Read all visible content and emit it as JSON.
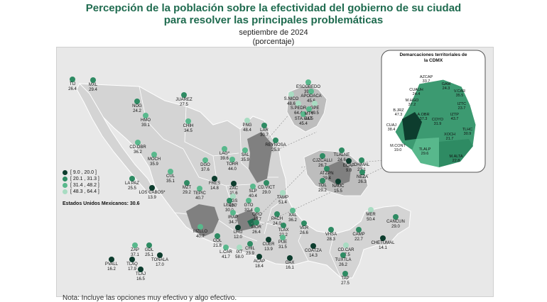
{
  "header": {
    "title_line1": "Percepción de la población sobre la efectividad del gobierno de su ciudad",
    "title_line2": "para resolver las principales problemáticas",
    "date": "septiembre de 2024",
    "unit": "(porcentaje)"
  },
  "legend": {
    "items": [
      {
        "label": "[  9.0 , 20.0 ]",
        "color": "#0d3d2e"
      },
      {
        "label": "[ 20.1 , 31.3 ]",
        "color": "#2e8b63"
      },
      {
        "label": "[ 31.4 , 48.2 ]",
        "color": "#58b88c"
      },
      {
        "label": "[ 48.3 , 64.4 ]",
        "color": "#a8dcc2"
      }
    ],
    "national": "Estados Unidos Mexicanos: 30.6"
  },
  "inset": {
    "title_line1": "Demarcaciones territoriales de",
    "title_line2": "la CDMX"
  },
  "footnote": "Nota: Incluye las opciones muy efectivo y algo efectivo.",
  "colors": {
    "dark": "#0d3d2e",
    "mid": "#2e8b63",
    "light": "#58b88c",
    "pale": "#a8dcc2",
    "region": "#808080",
    "land": "#d4d4d4"
  },
  "cities": [
    {
      "name": "TIJ",
      "value": "26.4",
      "cls": "mid"
    },
    {
      "name": "MXL",
      "value": "29.4",
      "cls": "mid"
    },
    {
      "name": "NOG",
      "value": "24.2",
      "cls": "mid"
    },
    {
      "name": "HMO",
      "value": "39.1",
      "cls": "light"
    },
    {
      "name": "JUAREZ",
      "value": "27.5",
      "cls": "mid"
    },
    {
      "name": "CHIH",
      "value": "34.5",
      "cls": "light"
    },
    {
      "name": "CD.OBR",
      "value": "36.2",
      "cls": "light"
    },
    {
      "name": "MOCH",
      "value": "35.9",
      "cls": "light"
    },
    {
      "name": "LA PAZ",
      "value": "25.5",
      "cls": "mid"
    },
    {
      "name": "LOS CABOS*",
      "value": "13.9",
      "cls": "dark"
    },
    {
      "name": "CUL",
      "value": "35.1",
      "cls": "light"
    },
    {
      "name": "MZT",
      "value": "29.2",
      "cls": "mid"
    },
    {
      "name": "DGO",
      "value": "37.6",
      "cls": "light"
    },
    {
      "name": "LAG*",
      "value": "39.6",
      "cls": "light"
    },
    {
      "name": "TORR",
      "value": "44.0",
      "cls": "light"
    },
    {
      "name": "SAL",
      "value": "35.9",
      "cls": "light"
    },
    {
      "name": "PNG",
      "value": "48.4",
      "cls": "pale"
    },
    {
      "name": "LAR",
      "value": "30.7",
      "cls": "mid"
    },
    {
      "name": "REYNOSA",
      "value": "25.3",
      "cls": "mid"
    },
    {
      "name": "ESCOBEDO",
      "value": "39.4",
      "cls": "light"
    },
    {
      "name": "S.NICO",
      "value": "48.6",
      "cls": "pale"
    },
    {
      "name": "APODACA",
      "value": "45.6",
      "cls": "light"
    },
    {
      "name": "GPE",
      "value": "49.5",
      "cls": "pale"
    },
    {
      "name": "S.PEDR",
      "value": "64.4",
      "cls": "pale"
    },
    {
      "name": "STA.CAT",
      "value": "45.4",
      "cls": "light"
    },
    {
      "name": "MTY",
      "value": "41.5",
      "cls": "light"
    },
    {
      "name": "FRES",
      "value": "14.8",
      "cls": "dark"
    },
    {
      "name": "ZAC",
      "value": "11.6",
      "cls": "dark"
    },
    {
      "name": "TEPIC",
      "value": "40.7",
      "cls": "light"
    },
    {
      "name": "SLP",
      "value": "40.4",
      "cls": "light"
    },
    {
      "name": "CD.VICT",
      "value": "29.0",
      "cls": "mid"
    },
    {
      "name": "AGS",
      "value": "49.7",
      "cls": "pale"
    },
    {
      "name": "LEON",
      "value": "30.0",
      "cls": "mid"
    },
    {
      "name": "GTO",
      "value": "32.4",
      "cls": "light"
    },
    {
      "name": "IRAP",
      "value": "34.7",
      "cls": "light"
    },
    {
      "name": "QRO",
      "value": "40.7",
      "cls": "light"
    },
    {
      "name": "TAMP",
      "value": "51.4",
      "cls": "pale"
    },
    {
      "name": "CJZCALLI",
      "value": "26.7",
      "cls": "mid"
    },
    {
      "name": "TLALNE",
      "value": "24.6",
      "cls": "mid"
    },
    {
      "name": "ATZPN",
      "value": "29.4",
      "cls": "mid"
    },
    {
      "name": "ECAP",
      "value": "9.0",
      "cls": "dark"
    },
    {
      "name": "CHIMAL",
      "value": "21.1",
      "cls": "mid"
    },
    {
      "name": "NEZA",
      "value": "26.3",
      "cls": "mid"
    },
    {
      "name": "TOL",
      "value": "29.2",
      "cls": "mid"
    },
    {
      "name": "NAUC",
      "value": "15.5",
      "cls": "dark"
    },
    {
      "name": "PACH",
      "value": "24.0",
      "cls": "mid"
    },
    {
      "name": "XAL",
      "value": "36.2",
      "cls": "light"
    },
    {
      "name": "VER",
      "value": "26.6",
      "cls": "mid"
    },
    {
      "name": "TLAX",
      "value": "22.2",
      "cls": "mid"
    },
    {
      "name": "MOR",
      "value": "26.4",
      "cls": "mid"
    },
    {
      "name": "PUE",
      "value": "31.5",
      "cls": "light"
    },
    {
      "name": "MZLLO",
      "value": "40.7",
      "cls": "light"
    },
    {
      "name": "COL",
      "value": "21.8",
      "cls": "mid"
    },
    {
      "name": "URU",
      "value": "12.0",
      "cls": "dark"
    },
    {
      "name": "L.CAR",
      "value": "41.7",
      "cls": "light"
    },
    {
      "name": "IXT",
      "value": "58.0",
      "cls": "pale"
    },
    {
      "name": "CUER",
      "value": "13.9",
      "cls": "dark"
    },
    {
      "name": "CHIL",
      "value": "23.9",
      "cls": "mid"
    },
    {
      "name": "ACAP",
      "value": "18.4",
      "cls": "dark"
    },
    {
      "name": "OAX",
      "value": "16.1",
      "cls": "dark"
    },
    {
      "name": "COATZA",
      "value": "14.3",
      "cls": "dark"
    },
    {
      "name": "VHSA",
      "value": "28.3",
      "cls": "mid"
    },
    {
      "name": "CD.CAR",
      "value": "57.5",
      "cls": "pale"
    },
    {
      "name": "CAMP",
      "value": "22.7",
      "cls": "mid"
    },
    {
      "name": "MER",
      "value": "50.4",
      "cls": "pale"
    },
    {
      "name": "CANCUN",
      "value": "29.0",
      "cls": "mid"
    },
    {
      "name": "CHETUMAL",
      "value": "14.1",
      "cls": "dark"
    },
    {
      "name": "TUXTLA",
      "value": "26.2",
      "cls": "mid"
    },
    {
      "name": "TAP",
      "value": "27.5",
      "cls": "mid"
    },
    {
      "name": "ZAP",
      "value": "37.1",
      "cls": "light"
    },
    {
      "name": "GDL",
      "value": "25.1",
      "cls": "mid"
    },
    {
      "name": "TONALA",
      "value": "17.0",
      "cls": "dark"
    },
    {
      "name": "PVALL",
      "value": "16.2",
      "cls": "dark"
    },
    {
      "name": "TLAQ",
      "value": "17.9",
      "cls": "dark"
    },
    {
      "name": "TLAJ",
      "value": "16.5",
      "cls": "dark"
    }
  ],
  "cdmx": [
    {
      "name": "AZCAP",
      "value": "33.7"
    },
    {
      "name": "CUAUH",
      "value": "24.4"
    },
    {
      "name": "GAM",
      "value": "24.3"
    },
    {
      "name": "V.CAR",
      "value": "35.5"
    },
    {
      "name": "M.HGO",
      "value": "37.2"
    },
    {
      "name": "IZTC",
      "value": "23.7"
    },
    {
      "name": "B.JRZ",
      "value": "47.3"
    },
    {
      "name": "IZTP",
      "value": "43.7"
    },
    {
      "name": "A.OBR",
      "value": "37.3"
    },
    {
      "name": "COYO",
      "value": "31.9"
    },
    {
      "name": "CUAJ",
      "value": "38.4"
    },
    {
      "name": "TLHC",
      "value": "30.9"
    },
    {
      "name": "XOCH",
      "value": "21.7"
    },
    {
      "name": "M.CONT",
      "value": "19.0"
    },
    {
      "name": "TLALP",
      "value": "29.6"
    },
    {
      "name": "M.ALTA",
      "value": "22.8"
    }
  ]
}
